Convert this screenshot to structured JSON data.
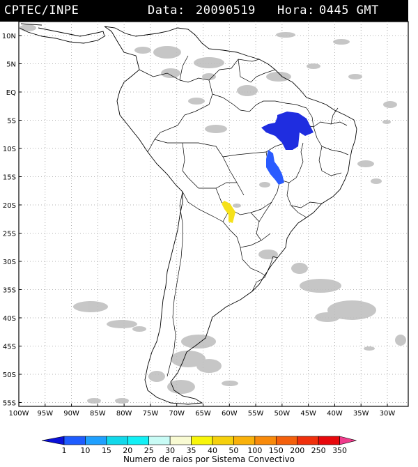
{
  "header": {
    "source": "CPTEC/INPE",
    "date_label": "Data:",
    "date": "20090519",
    "time_label": "Hora:",
    "time": "0445 GMT"
  },
  "map": {
    "latitude_labels": [
      "10N",
      "5N",
      "EQ",
      "5S",
      "10S",
      "15S",
      "20S",
      "25S",
      "30S",
      "35S",
      "40S",
      "45S",
      "50S",
      "55S"
    ],
    "longitude_labels": [
      "100W",
      "95W",
      "90W",
      "85W",
      "80W",
      "75W",
      "70W",
      "65W",
      "60W",
      "55W",
      "50W",
      "45W",
      "40W",
      "35W",
      "30W"
    ],
    "grid": "dotted",
    "lightning_systems": [
      {
        "region": "north-east Brazil (Pará/Tocantins)",
        "color": "#1f2de0"
      },
      {
        "region": "central Brazil (Goiás)",
        "color": "#2a5bff"
      },
      {
        "region": "western Paraguay",
        "color": "#f5e11a"
      }
    ],
    "cloud_color": "#bdbdbd"
  },
  "colorbar": {
    "ticks": [
      "1",
      "10",
      "15",
      "20",
      "25",
      "30",
      "35",
      "40",
      "50",
      "100",
      "150",
      "200",
      "250",
      "350"
    ],
    "colors": [
      "#0a10d8",
      "#1e5cff",
      "#1fa0ff",
      "#12d8ea",
      "#12f0f5",
      "#c8fbf5",
      "#f8fad2",
      "#f8f50a",
      "#f5d00c",
      "#f9b10a",
      "#f88a0a",
      "#f4600b",
      "#f0300c",
      "#e8080c",
      "#f03c8c"
    ],
    "title": "Numero de raios por Sistema Convectivo"
  }
}
